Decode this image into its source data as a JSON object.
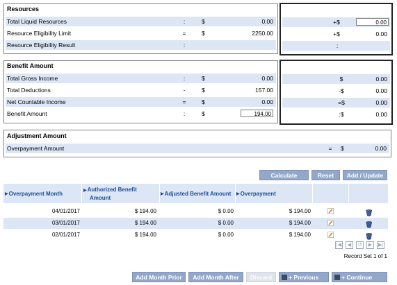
{
  "resources": {
    "title": "Resources",
    "rows": [
      {
        "label": "Total Liquid Resources",
        "op": ":",
        "cur": "$",
        "value": "0.00",
        "rop": "+$",
        "rvalue": "0.00"
      },
      {
        "label": "Resource Eligibility Limit",
        "op": "=",
        "cur": "$",
        "value": "2250.00",
        "rop": "+$",
        "rvalue": "0.00"
      },
      {
        "label": "Resource Eligibility Result",
        "op": ":",
        "cur": "",
        "value": "",
        "rop": ":",
        "rvalue": ""
      }
    ]
  },
  "benefit": {
    "title": "Benefit Amount",
    "rows": [
      {
        "label": "Total Gross Income",
        "op": ":",
        "cur": "$",
        "value": "0.00",
        "rop": "$",
        "rvalue": "0.00"
      },
      {
        "label": "Total Deductions",
        "op": "-",
        "cur": "$",
        "value": "157.00",
        "rop": "-$",
        "rvalue": "0.00"
      },
      {
        "label": "Net Countable Income",
        "op": "=",
        "cur": "$",
        "value": "0.00",
        "rop": "=$",
        "rvalue": "0.00"
      },
      {
        "label": "Benefit Amount",
        "op": ":",
        "cur": "$",
        "value": "194.00",
        "rop": ":$",
        "rvalue": "0.00"
      }
    ]
  },
  "adjustment": {
    "title": "Adjustment Amount",
    "row": {
      "label": "Overpayment Amount",
      "op": "=",
      "cur": "$",
      "value": "0.00"
    }
  },
  "actions": {
    "calculate": "Calculate",
    "reset": "Reset",
    "add_update": "Add / Update"
  },
  "table": {
    "headers": {
      "month": "Overpayment Month",
      "authorized_line1": "Authorized Benefit",
      "authorized_line2": "Amount",
      "adjusted": "Adjusted Benefit Amount",
      "overpayment": "Overpayment"
    },
    "rows": [
      {
        "month": "04/01/2017",
        "authorized": "$ 194.00",
        "adjusted": "$ 0.00",
        "overpayment": "$ 194.00"
      },
      {
        "month": "03/01/2017",
        "authorized": "$ 194.00",
        "adjusted": "$ 0.00",
        "overpayment": "$ 194.00"
      },
      {
        "month": "02/01/2017",
        "authorized": "$ 194.00",
        "adjusted": "$ 0.00",
        "overpayment": "$ 194.00"
      }
    ],
    "record_set": "Record Set 1 of 1"
  },
  "footer": {
    "add_month_prior": "Add Month Prior",
    "add_month_after": "Add Month After",
    "discard": "Discard",
    "previous": "+ Previous",
    "continue": "+ Continue"
  },
  "colors": {
    "accent": "#93a7c8",
    "row_alt": "#dce6f4",
    "header_text": "#1f4e9a"
  }
}
